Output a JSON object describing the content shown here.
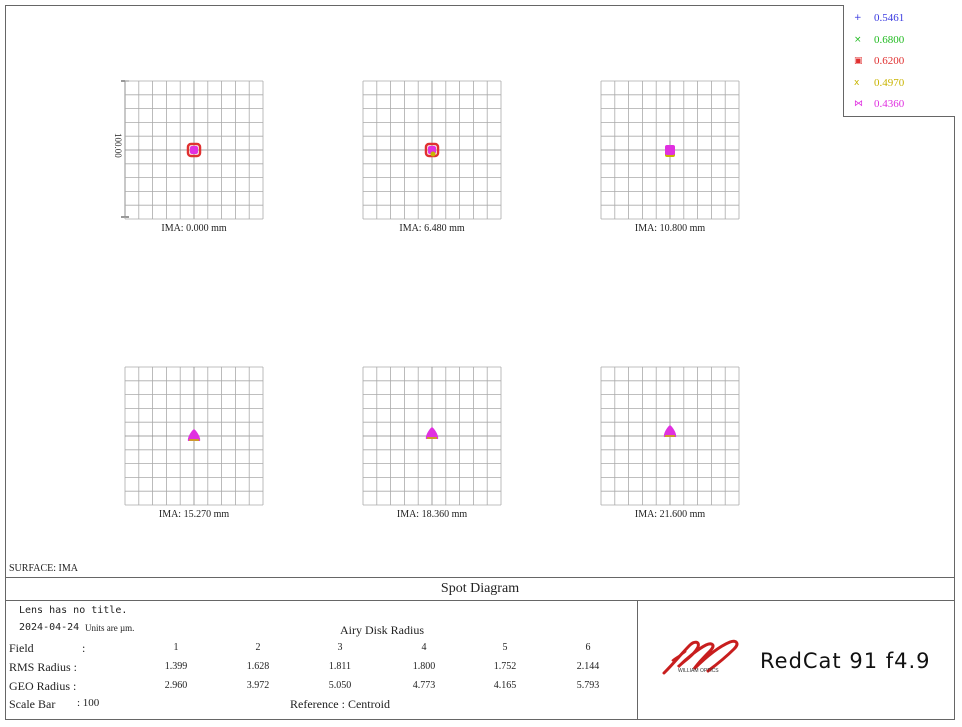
{
  "legend": [
    {
      "symbol": "+",
      "label": "0.5461",
      "color": "#3a3ae0"
    },
    {
      "symbol": "×",
      "label": "0.6800",
      "color": "#22bb22"
    },
    {
      "symbol": "▣",
      "label": "0.6200",
      "color": "#e03030"
    },
    {
      "symbol": "x",
      "label": "0.4970",
      "color": "#c8b400"
    },
    {
      "symbol": "⋈",
      "label": "0.4360",
      "color": "#e030e0"
    }
  ],
  "scale_label": "100.00",
  "fields": [
    {
      "ima": "IMA: 0.000 mm"
    },
    {
      "ima": "IMA: 6.480 mm"
    },
    {
      "ima": "IMA: 10.800 mm"
    },
    {
      "ima": "IMA: 15.270 mm"
    },
    {
      "ima": "IMA: 18.360 mm"
    },
    {
      "ima": "IMA: 21.600 mm"
    }
  ],
  "surface": "SURFACE: IMA",
  "title": "Spot Diagram",
  "info": {
    "lens_title": "Lens has no title.",
    "date": "2024-04-24",
    "units": "Units are µm.",
    "airy": "Airy Disk Radius",
    "field_label": "Field",
    "colon": ":",
    "field_numbers": [
      "1",
      "2",
      "3",
      "4",
      "5",
      "6"
    ],
    "rms_label": "RMS Radius :",
    "rms_values": [
      "1.399",
      "1.628",
      "1.811",
      "1.800",
      "1.752",
      "2.144"
    ],
    "geo_label": "GEO Radius :",
    "geo_values": [
      "2.960",
      "3.972",
      "5.050",
      "4.773",
      "4.165",
      "5.793"
    ],
    "scale_bar_label": "Scale Bar",
    "scale_bar_value": ": 100",
    "reference": "Reference  :  Centroid"
  },
  "brand": {
    "name": "RedCat 91  f4.9",
    "sub": "WILLIAM OPTICS",
    "color": "#c81e1e"
  }
}
